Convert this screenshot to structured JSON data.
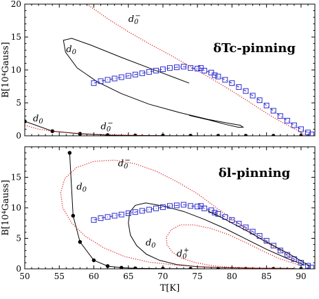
{
  "chart_data": [
    {
      "type": "line",
      "title": "δTc-pinning",
      "xlim": [
        50,
        92
      ],
      "ylim": [
        0,
        20
      ],
      "xticks": [
        50,
        55,
        60,
        65,
        70,
        75,
        80,
        85,
        90
      ],
      "xticklabels": [
        "50",
        "55",
        "60",
        "65",
        "70",
        "75",
        "80",
        "85",
        "90"
      ],
      "yticks": [
        0,
        5,
        10,
        15,
        20
      ],
      "yticklabels": [
        "0",
        "5",
        "10",
        "15",
        "20"
      ],
      "ylabel": "B[10⁴Gauss]",
      "xlabel": "",
      "grid": false,
      "series": [
        {
          "name": "d0",
          "label_text": "d₀",
          "style": "solid",
          "color": "#000000",
          "marker": "none",
          "label_pos": [
            56,
            12.7
          ],
          "x": [
            73.8,
            69.0,
            64.0,
            59.5,
            56.8,
            55.6,
            55.9,
            57.6,
            60.5,
            64.0,
            68.0,
            72.5,
            76.5,
            79.5,
            81.2,
            81.6,
            80.9,
            79.2,
            76.7,
            73.8
          ],
          "y": [
            8.0,
            9.9,
            11.9,
            13.8,
            14.8,
            14.5,
            12.7,
            10.3,
            8.2,
            6.4,
            4.8,
            3.5,
            2.5,
            1.9,
            1.6,
            1.3,
            1.3,
            1.7,
            2.4,
            3.1
          ]
        },
        {
          "name": "d0-",
          "label_text": "d₀⁻",
          "style": "dotted",
          "color": "#dd1111",
          "marker": "none",
          "label_pos": [
            65,
            17.3
          ],
          "x": [
            59.0,
            62.0,
            65.0,
            68.0,
            71.0,
            74.0,
            77.0,
            80.0,
            83.0,
            85.5,
            87.5,
            89.5,
            90.5
          ],
          "y": [
            20.0,
            17.8,
            15.8,
            14.0,
            12.3,
            10.5,
            8.7,
            6.8,
            4.8,
            3.1,
            1.9,
            0.8,
            0.2
          ]
        },
        {
          "name": "data",
          "label_text": "",
          "style": "dash-dot",
          "color": "#2a2ad0",
          "marker": "square",
          "x": [
            60,
            61,
            62,
            63,
            64,
            65,
            66,
            67,
            68,
            69,
            70,
            71,
            72,
            73,
            74,
            75,
            75.5,
            76,
            77,
            77.5,
            78,
            79,
            80,
            81,
            82,
            83,
            84,
            85,
            86,
            87,
            88,
            89,
            90,
            91,
            91.5
          ],
          "y": [
            8.0,
            8.3,
            8.5,
            8.7,
            8.9,
            9.1,
            9.3,
            9.5,
            9.7,
            9.9,
            10.1,
            10.3,
            10.4,
            10.5,
            10.3,
            10.2,
            10.3,
            9.9,
            9.6,
            9.2,
            9.0,
            8.5,
            8.0,
            7.4,
            6.8,
            6.1,
            5.4,
            4.6,
            3.8,
            3.0,
            2.3,
            1.6,
            1.0,
            0.5,
            0.2
          ]
        },
        {
          "name": "d0-star",
          "label_text": "d₀",
          "style": "solid",
          "color": "#000000",
          "marker": "star",
          "label_pos": [
            51.2,
            2.2
          ],
          "x": [
            50,
            54,
            58,
            62,
            66,
            70,
            74,
            78,
            82,
            86,
            90
          ],
          "y": [
            2.2,
            0.7,
            0.3,
            0.1,
            0.05,
            0.02,
            0.01,
            0.0,
            0.0,
            0.0,
            0.0
          ]
        },
        {
          "name": "d0- lower",
          "label_text": "d₀⁻",
          "style": "dotted",
          "color": "#dd1111",
          "marker": "none",
          "label_pos": [
            61,
            1.0
          ],
          "x": [
            50,
            52,
            54,
            56,
            58,
            60,
            62,
            64,
            66,
            68,
            70
          ],
          "y": [
            1.6,
            1.0,
            0.7,
            0.5,
            0.35,
            0.25,
            0.18,
            0.12,
            0.08,
            0.05,
            0.03
          ]
        }
      ]
    },
    {
      "type": "line",
      "title": "δl-pinning",
      "xlim": [
        50,
        92
      ],
      "ylim": [
        0,
        20
      ],
      "xticks": [
        50,
        55,
        60,
        65,
        70,
        75,
        80,
        85,
        90
      ],
      "xticklabels": [
        "50",
        "55",
        "60",
        "65",
        "70",
        "75",
        "80",
        "85",
        "90"
      ],
      "yticks": [
        0,
        5,
        10,
        15
      ],
      "yticklabels": [
        "0",
        "5",
        "10",
        "15"
      ],
      "ylabel": "B[10⁴Gauss]",
      "xlabel": "T[K]",
      "grid": false,
      "series": [
        {
          "name": "d0-star",
          "label_text": "d₀",
          "style": "solid",
          "color": "#000000",
          "marker": "star",
          "label_pos": [
            57.5,
            13.0
          ],
          "x": [
            56.5,
            57.0,
            58.0,
            60.0,
            62.0,
            64.0,
            66.0,
            70.0,
            74.0,
            78.0,
            82.0,
            86.0,
            90.0
          ],
          "y": [
            19.0,
            8.7,
            4.4,
            1.4,
            0.45,
            0.18,
            0.08,
            0.03,
            0.01,
            0.0,
            0.0,
            0.0,
            0.0
          ]
        },
        {
          "name": "d0 loop",
          "label_text": "d₀",
          "style": "solid",
          "color": "#000000",
          "marker": "none",
          "label_pos": [
            67.5,
            3.8
          ],
          "x": [
            90.5,
            88.0,
            85.0,
            82.0,
            79.0,
            76.0,
            73.0,
            70.0,
            67.5,
            66.0,
            65.2,
            65.0,
            65.3,
            66.2,
            67.6,
            69.5,
            72.0,
            75.0,
            78.0,
            81.0,
            84.0,
            87.0,
            89.0
          ],
          "y": [
            0.6,
            1.7,
            3.2,
            4.9,
            6.6,
            8.1,
            9.4,
            10.3,
            10.8,
            10.4,
            9.3,
            7.5,
            5.5,
            3.8,
            2.4,
            1.4,
            0.7,
            0.35,
            0.2,
            0.15,
            0.1,
            0.08,
            0.05
          ]
        },
        {
          "name": "d0- loop",
          "label_text": "d₀⁻",
          "style": "dotted",
          "color": "#dd1111",
          "marker": "none",
          "label_pos": [
            63.5,
            16.8
          ],
          "x": [
            89.5,
            87.0,
            84.0,
            81.0,
            78.0,
            75.0,
            72.0,
            69.0,
            66.0,
            63.0,
            60.0,
            57.5,
            55.8,
            55.2,
            55.5,
            56.8,
            58.8,
            61.5,
            64.5,
            68.0,
            72.0,
            76.0,
            80.0,
            84.0,
            87.0,
            89.5
          ],
          "y": [
            1.0,
            2.9,
            5.0,
            7.4,
            9.8,
            12.3,
            14.3,
            16.0,
            17.2,
            17.8,
            17.6,
            16.6,
            14.8,
            12.5,
            10.0,
            7.5,
            5.3,
            3.4,
            2.0,
            1.1,
            0.6,
            0.3,
            0.15,
            0.1,
            0.08,
            0.06
          ]
        },
        {
          "name": "d0+ loop",
          "label_text": "d₀⁺",
          "style": "dotted",
          "color": "#dd1111",
          "marker": "none",
          "label_pos": [
            72,
            2.0
          ],
          "x": [
            89.5,
            87.0,
            84.5,
            82.0,
            79.5,
            77.0,
            74.5,
            72.5,
            71.2,
            70.5,
            70.6,
            71.4,
            72.8,
            74.8,
            77.2,
            80.0,
            83.0,
            86.0,
            88.5
          ],
          "y": [
            0.7,
            1.6,
            2.9,
            4.3,
            5.6,
            6.6,
            7.2,
            7.2,
            6.4,
            5.2,
            3.9,
            2.7,
            1.7,
            1.0,
            0.5,
            0.25,
            0.12,
            0.07,
            0.05
          ]
        },
        {
          "name": "data",
          "label_text": "",
          "style": "dash-dot",
          "color": "#2a2ad0",
          "marker": "square",
          "x": [
            60,
            61,
            62,
            63,
            64,
            65,
            66,
            67,
            68,
            69,
            70,
            71,
            72,
            73,
            74,
            75,
            75.5,
            76,
            77,
            77.5,
            78,
            79,
            80,
            81,
            82,
            83,
            84,
            85,
            86,
            87,
            88,
            89,
            90,
            91,
            91.5
          ],
          "y": [
            8.0,
            8.3,
            8.5,
            8.7,
            8.9,
            9.1,
            9.3,
            9.5,
            9.7,
            9.9,
            10.1,
            10.3,
            10.4,
            10.5,
            10.3,
            10.2,
            10.3,
            9.9,
            9.6,
            9.2,
            9.0,
            8.5,
            8.0,
            7.4,
            6.8,
            6.1,
            5.4,
            4.6,
            3.8,
            3.0,
            2.3,
            1.6,
            1.0,
            0.5,
            0.2
          ]
        },
        {
          "name": "solid overlay",
          "label_text": "",
          "style": "solid",
          "color": "#000000",
          "marker": "none",
          "x": [
            76.5,
            78.5,
            80.5,
            82.5,
            84.5,
            86.5,
            88.5,
            90.0,
            91.2
          ],
          "y": [
            9.5,
            8.4,
            7.2,
            6.0,
            4.7,
            3.5,
            2.3,
            1.3,
            0.5
          ]
        }
      ]
    }
  ]
}
